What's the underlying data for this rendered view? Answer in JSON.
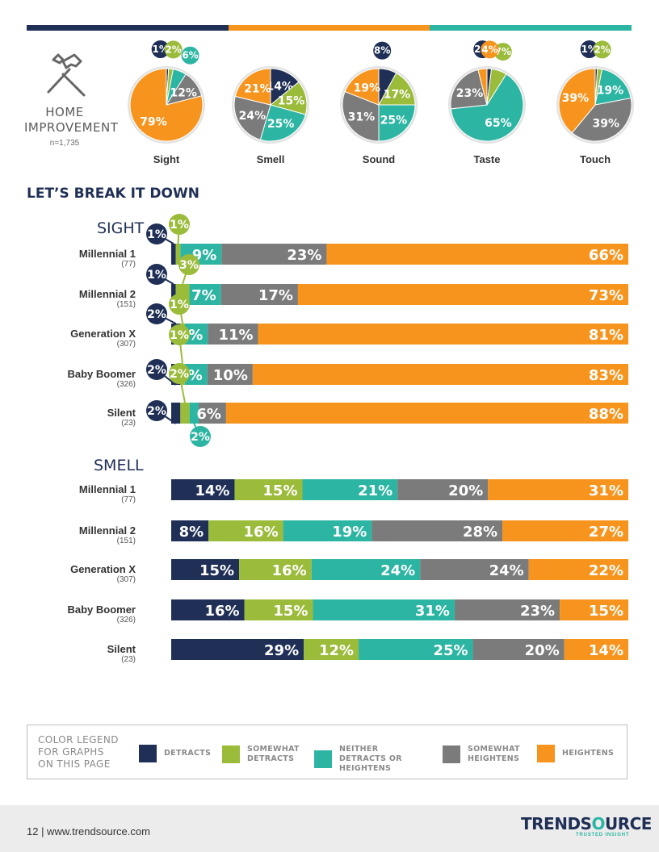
{
  "colors": {
    "detracts": "#1f2f56",
    "somewhat_detracts": "#9bbb3b",
    "neither": "#2db5a3",
    "somewhat_heightens": "#7b7b7b",
    "heightens": "#f7941d"
  },
  "header": {
    "icon": "hammer-screwdriver-icon",
    "title_line1": "HOME",
    "title_line2": "IMPROVEMENT",
    "n": "n=1,735"
  },
  "section_title": "LET’S BREAK IT DOWN",
  "chart_data": [
    {
      "type": "pie",
      "categories": [
        "Sight",
        "Smell",
        "Sound",
        "Taste",
        "Touch"
      ],
      "series": [
        {
          "name": "DETRACTS",
          "values": [
            1,
            14,
            8,
            2,
            1
          ]
        },
        {
          "name": "SOMEWHAT DETRACTS",
          "values": [
            2,
            15,
            17,
            7,
            2
          ]
        },
        {
          "name": "NEITHER DETRACTS OR HEIGHTENS",
          "values": [
            6,
            25,
            25,
            65,
            19
          ]
        },
        {
          "name": "SOMEWHAT HEIGHTENS",
          "values": [
            12,
            24,
            31,
            23,
            39
          ]
        },
        {
          "name": "HEIGHTENS",
          "values": [
            79,
            21,
            19,
            4,
            39
          ]
        }
      ]
    },
    {
      "type": "bar",
      "title": "SIGHT",
      "categories": [
        "Millennial 1",
        "Millennial 2",
        "Generation X",
        "Baby Boomer",
        "Silent"
      ],
      "counts": [
        "(77)",
        "(151)",
        "(307)",
        "(326)",
        "(23)"
      ],
      "series": [
        {
          "name": "DETRACTS",
          "values": [
            1,
            1,
            2,
            2,
            2
          ]
        },
        {
          "name": "SOMEWHAT DETRACTS",
          "values": [
            1,
            3,
            1,
            1,
            2
          ]
        },
        {
          "name": "NEITHER DETRACTS OR HEIGHTENS",
          "values": [
            9,
            7,
            5,
            5,
            2
          ]
        },
        {
          "name": "SOMEWHAT HEIGHTENS",
          "values": [
            23,
            17,
            11,
            10,
            6
          ]
        },
        {
          "name": "HEIGHTENS",
          "values": [
            66,
            73,
            81,
            83,
            88
          ]
        }
      ]
    },
    {
      "type": "bar",
      "title": "SMELL",
      "categories": [
        "Millennial 1",
        "Millennial 2",
        "Generation X",
        "Baby Boomer",
        "Silent"
      ],
      "counts": [
        "(77)",
        "(151)",
        "(307)",
        "(326)",
        "(23)"
      ],
      "series": [
        {
          "name": "DETRACTS",
          "values": [
            14,
            8,
            15,
            16,
            29
          ]
        },
        {
          "name": "SOMEWHAT DETRACTS",
          "values": [
            15,
            16,
            16,
            15,
            12
          ]
        },
        {
          "name": "NEITHER DETRACTS OR HEIGHTENS",
          "values": [
            21,
            19,
            24,
            31,
            25
          ]
        },
        {
          "name": "SOMEWHAT HEIGHTENS",
          "values": [
            20,
            28,
            24,
            23,
            20
          ]
        },
        {
          "name": "HEIGHTENS",
          "values": [
            31,
            27,
            22,
            15,
            14
          ]
        }
      ]
    }
  ],
  "legend": {
    "title_lines": [
      "COLOR LEGEND",
      "FOR GRAPHS",
      "ON THIS PAGE"
    ],
    "items": [
      "DETRACTS",
      "SOMEWHAT DETRACTS",
      "NEITHER DETRACTS OR HEIGHTENS",
      "SOMEWHAT HEIGHTENS",
      "HEIGHTENS"
    ]
  },
  "footer": {
    "page_text": "12  |  www.trendsource.com",
    "logo_left": "TRENDS",
    "logo_o": "O",
    "logo_right": "URCE",
    "tagline": "TRUSTED INSIGHT"
  }
}
